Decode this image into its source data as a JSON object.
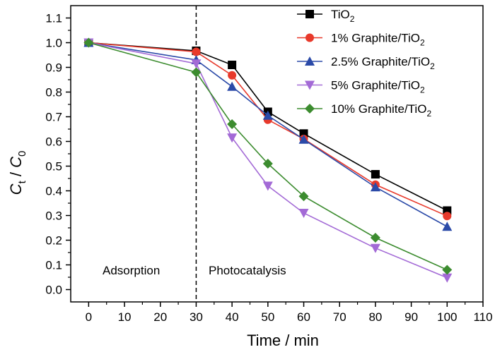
{
  "chart_data": {
    "type": "line",
    "title": "",
    "xlabel": "Time / min",
    "ylabel": {
      "main": "C",
      "sub": "t",
      "sep": " / ",
      "main2": "C",
      "sub2": "0"
    },
    "xlim": [
      -5,
      110
    ],
    "ylim": [
      -0.05,
      1.15
    ],
    "xticks": [
      0,
      10,
      20,
      30,
      40,
      50,
      60,
      70,
      80,
      90,
      100,
      110
    ],
    "yticks": [
      "0.0",
      "0.1",
      "0.2",
      "0.3",
      "0.4",
      "0.5",
      "0.6",
      "0.7",
      "0.8",
      "0.9",
      "1.0",
      "1.1"
    ],
    "grid": false,
    "legend_position": "top-right",
    "divider": {
      "x": 30,
      "style": "dashed"
    },
    "annotations": [
      "Adsorption",
      "Photocatalysis"
    ],
    "x": [
      0,
      30,
      40,
      50,
      60,
      80,
      100
    ],
    "series": [
      {
        "name": "TiO",
        "sub": "2",
        "color": "#000000",
        "marker": "square",
        "values": [
          1.0,
          0.967,
          0.91,
          0.72,
          0.632,
          0.467,
          0.32
        ]
      },
      {
        "name": "1% Graphite/TiO",
        "sub": "2",
        "color": "#e8392b",
        "marker": "circle",
        "values": [
          1.0,
          0.963,
          0.868,
          0.688,
          0.61,
          0.425,
          0.298
        ]
      },
      {
        "name": "2.5% Graphite/TiO",
        "sub": "2",
        "color": "#2b4aa8",
        "marker": "triangle-up",
        "values": [
          1.0,
          0.93,
          0.822,
          0.705,
          0.608,
          0.415,
          0.255
        ]
      },
      {
        "name": "5% Graphite/TiO",
        "sub": "2",
        "color": "#a36ad6",
        "marker": "triangle-down",
        "values": [
          1.0,
          0.915,
          0.615,
          0.42,
          0.31,
          0.168,
          0.048
        ]
      },
      {
        "name": "10% Graphite/TiO",
        "sub": "2",
        "color": "#3c8c2f",
        "marker": "diamond",
        "values": [
          1.0,
          0.88,
          0.67,
          0.51,
          0.378,
          0.21,
          0.08
        ]
      }
    ]
  }
}
